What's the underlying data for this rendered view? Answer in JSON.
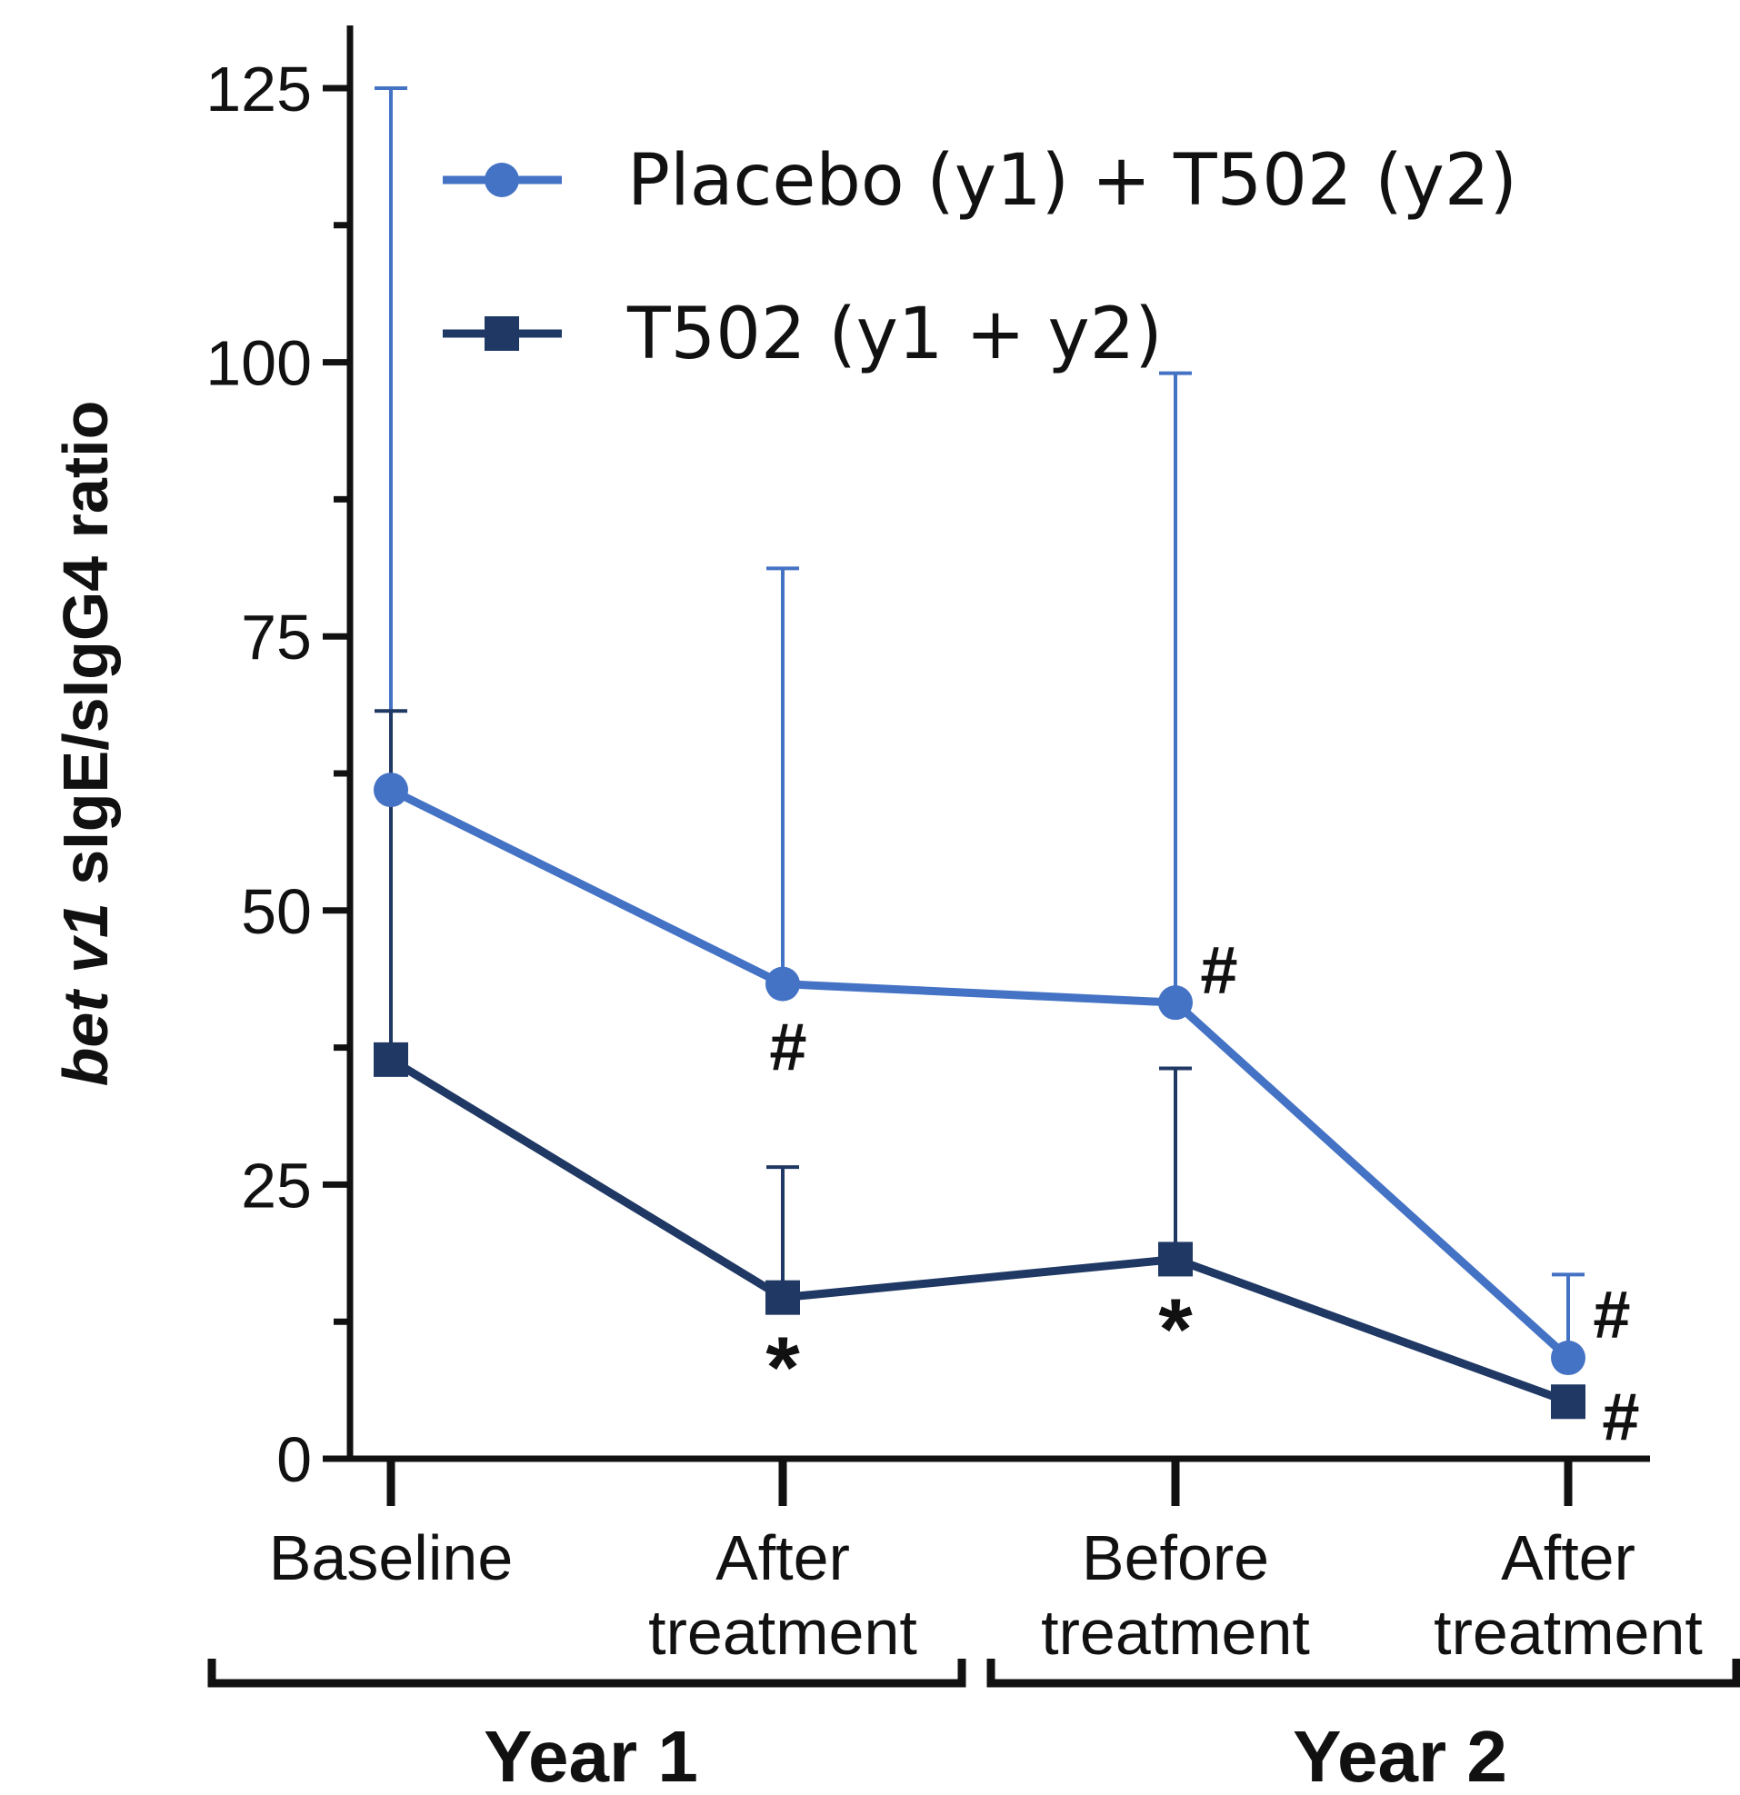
{
  "chart_data": {
    "type": "line",
    "ylabel_italic": "bet v1",
    "ylabel_rest": " sIgE/sIgG4 ratio",
    "ylim": [
      0,
      125
    ],
    "yticks": [
      "0",
      "25",
      "50",
      "75",
      "100",
      "125"
    ],
    "ytick_values": [
      0,
      25,
      50,
      75,
      100,
      125
    ],
    "yminor_values": [
      12.5,
      37.5,
      62.5,
      87.5,
      112.5
    ],
    "categories": [
      [
        "Baseline"
      ],
      [
        "After",
        "treatment"
      ],
      [
        "Before",
        "treatment"
      ],
      [
        "After",
        "treatment"
      ]
    ],
    "groups": [
      {
        "label": "Year 1",
        "from": 0,
        "to": 1
      },
      {
        "label": "Year 2",
        "from": 2,
        "to": 3
      }
    ],
    "legend_position": "top-center",
    "grid": false,
    "series": [
      {
        "name": "Placebo (y1) + T502 (y2)",
        "color": "#4472c4",
        "marker": "circle",
        "values": [
          61,
          43.3,
          41.6,
          9.2
        ],
        "error_upper": [
          125,
          81.2,
          99,
          16.8
        ]
      },
      {
        "name": "T502 (y1 + y2)",
        "color": "#1f3864",
        "marker": "square",
        "values": [
          36.4,
          14.7,
          18.2,
          5.2
        ],
        "error_upper": [
          68.2,
          26.6,
          35.6,
          5.2
        ]
      }
    ],
    "annotations": [
      {
        "text": "#",
        "category": 1,
        "value": 43.3,
        "position": "below"
      },
      {
        "text": "#",
        "category": 2,
        "value": 41.6,
        "position": "right"
      },
      {
        "text": "#",
        "category": 3,
        "value": 9.2,
        "position": "right"
      },
      {
        "text": "#",
        "category": 3,
        "value": 5.2,
        "position": "right"
      },
      {
        "text": "*",
        "category": 1,
        "value": 14.7,
        "position": "below"
      },
      {
        "text": "*",
        "category": 2,
        "value": 18.2,
        "position": "below"
      }
    ]
  }
}
